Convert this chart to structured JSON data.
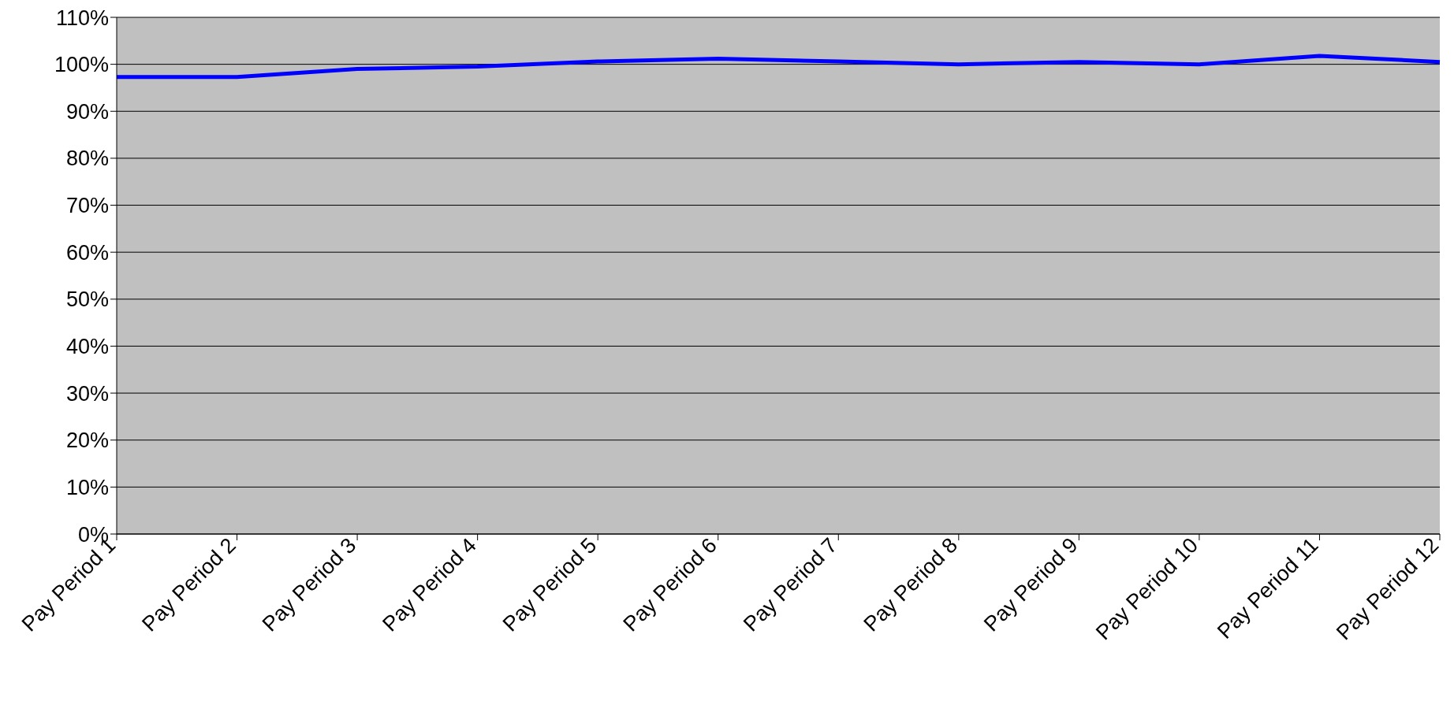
{
  "chart_data": {
    "type": "line",
    "categories": [
      "Pay Period 1",
      "Pay Period 2",
      "Pay Period 3",
      "Pay Period 4",
      "Pay Period 5",
      "Pay Period 6",
      "Pay Period 7",
      "Pay Period 8",
      "Pay Period 9",
      "Pay Period 10",
      "Pay Period 11",
      "Pay Period 12"
    ],
    "series": [
      {
        "color": "#0000ff",
        "values": [
          97.3,
          97.3,
          99.0,
          99.5,
          100.6,
          101.2,
          100.6,
          100.0,
          100.5,
          100.0,
          101.8,
          100.5
        ]
      }
    ],
    "ylim": [
      0,
      110
    ],
    "yticks": [
      {
        "value": 0,
        "label": "0%"
      },
      {
        "value": 10,
        "label": "10%"
      },
      {
        "value": 20,
        "label": "20%"
      },
      {
        "value": 30,
        "label": "30%"
      },
      {
        "value": 40,
        "label": "40%"
      },
      {
        "value": 50,
        "label": "50%"
      },
      {
        "value": 60,
        "label": "60%"
      },
      {
        "value": 70,
        "label": "70%"
      },
      {
        "value": 80,
        "label": "80%"
      },
      {
        "value": 90,
        "label": "90%"
      },
      {
        "value": 100,
        "label": "100%"
      },
      {
        "value": 110,
        "label": "110%"
      }
    ],
    "grid": "y",
    "marker": "none",
    "line_style": "solid"
  }
}
